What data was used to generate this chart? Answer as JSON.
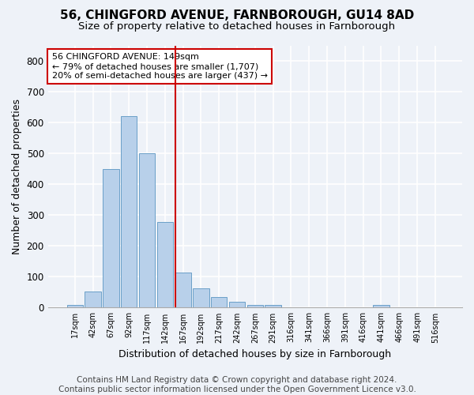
{
  "title1": "56, CHINGFORD AVENUE, FARNBOROUGH, GU14 8AD",
  "title2": "Size of property relative to detached houses in Farnborough",
  "xlabel": "Distribution of detached houses by size in Farnborough",
  "ylabel": "Number of detached properties",
  "footer1": "Contains HM Land Registry data © Crown copyright and database right 2024.",
  "footer2": "Contains public sector information licensed under the Open Government Licence v3.0.",
  "bar_labels": [
    "17sqm",
    "42sqm",
    "67sqm",
    "92sqm",
    "117sqm",
    "142sqm",
    "167sqm",
    "192sqm",
    "217sqm",
    "242sqm",
    "267sqm",
    "291sqm",
    "316sqm",
    "341sqm",
    "366sqm",
    "391sqm",
    "416sqm",
    "441sqm",
    "466sqm",
    "491sqm",
    "516sqm"
  ],
  "bar_values": [
    10,
    52,
    450,
    622,
    500,
    278,
    115,
    62,
    35,
    20,
    10,
    8,
    0,
    0,
    0,
    0,
    0,
    8,
    0,
    0,
    0
  ],
  "bar_color": "#b8d0ea",
  "bar_edge_color": "#6a9fc8",
  "vline_x": 5.57,
  "vline_color": "#cc0000",
  "annotation_text": "56 CHINGFORD AVENUE: 149sqm\n← 79% of detached houses are smaller (1,707)\n20% of semi-detached houses are larger (437) →",
  "annotation_box_color": "#ffffff",
  "annotation_box_edge": "#cc0000",
  "ylim": [
    0,
    850
  ],
  "yticks": [
    0,
    100,
    200,
    300,
    400,
    500,
    600,
    700,
    800
  ],
  "background_color": "#eef2f8",
  "grid_color": "#ffffff",
  "title1_fontsize": 11,
  "title2_fontsize": 9.5,
  "xlabel_fontsize": 9,
  "ylabel_fontsize": 9,
  "footer_fontsize": 7.5,
  "annotation_fontsize": 8
}
